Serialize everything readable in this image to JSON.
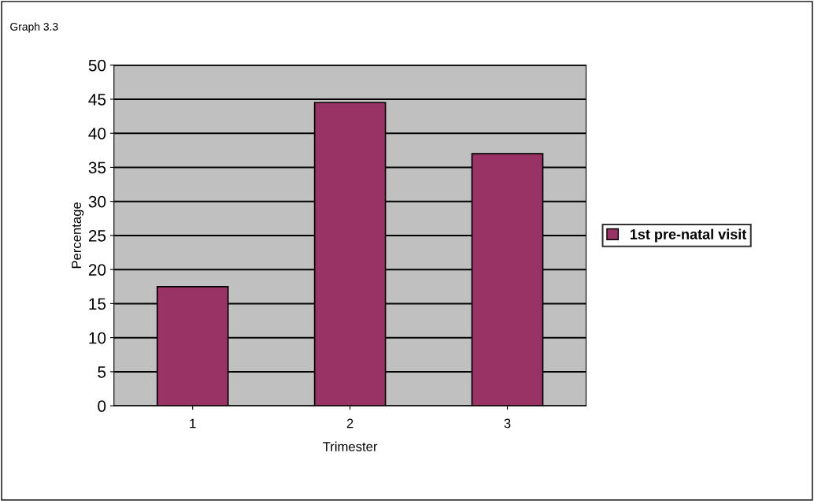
{
  "chart_data": {
    "type": "bar",
    "title": "Graph 3.3",
    "xlabel": "Trimester",
    "ylabel": "Percentage",
    "categories": [
      "1",
      "2",
      "3"
    ],
    "series": [
      {
        "name": "1st pre-natal visit",
        "color": "#993366",
        "values": [
          17.5,
          44.5,
          37
        ]
      }
    ],
    "ylim": [
      0,
      50
    ],
    "yticks": [
      0,
      5,
      10,
      15,
      20,
      25,
      30,
      35,
      40,
      45,
      50
    ],
    "grid": "y",
    "legend": "right"
  }
}
